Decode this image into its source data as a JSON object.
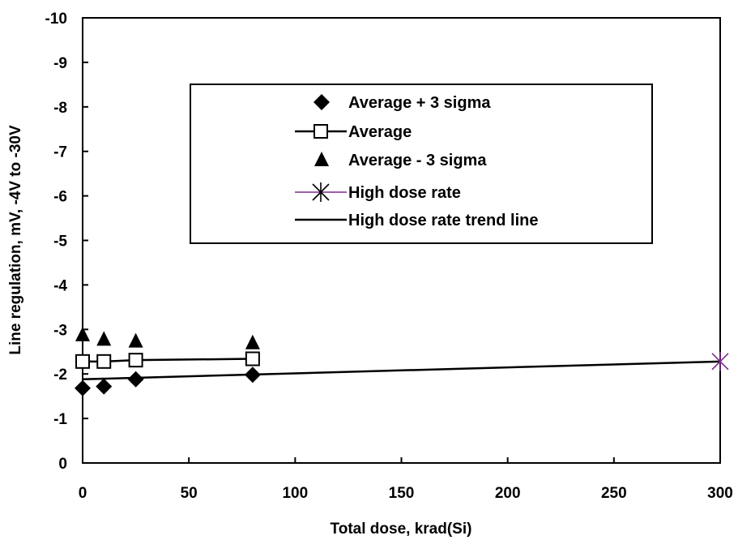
{
  "chart_data": {
    "type": "scatter",
    "xlabel": "Total dose, krad(Si)",
    "ylabel": "Line regulation, mV, -4V to -30V",
    "xlim": [
      0,
      300
    ],
    "ylim": [
      0,
      -10
    ],
    "x_ticks": [
      0,
      50,
      100,
      150,
      200,
      250,
      300
    ],
    "y_ticks": [
      0,
      -1,
      -2,
      -3,
      -4,
      -5,
      -6,
      -7,
      -8,
      -9,
      -10
    ],
    "x_tick_labels": [
      "0",
      "50",
      "100",
      "150",
      "200",
      "250",
      "300"
    ],
    "y_tick_labels": [
      "0",
      "-1",
      "-2",
      "-3",
      "-4",
      "-5",
      "-6",
      "-7",
      "-8",
      "-9",
      "-10"
    ],
    "grid": false,
    "legend_position": "top-right inside",
    "series": [
      {
        "name": "Average + 3 sigma",
        "marker": "diamond",
        "line": false,
        "color": "#000000",
        "x": [
          0,
          10,
          25,
          80
        ],
        "y": [
          -1.68,
          -1.72,
          -1.88,
          -1.98
        ]
      },
      {
        "name": "Average",
        "marker": "open-square",
        "line": true,
        "color": "#000000",
        "x": [
          0,
          10,
          25,
          80
        ],
        "y": [
          -2.28,
          -2.28,
          -2.31,
          -2.34
        ]
      },
      {
        "name": "Average - 3 sigma",
        "marker": "triangle",
        "line": false,
        "color": "#000000",
        "x": [
          0,
          10,
          25,
          80
        ],
        "y": [
          -2.88,
          -2.78,
          -2.74,
          -2.7
        ]
      },
      {
        "name": "High dose rate",
        "marker": "asterisk",
        "line": true,
        "color": "#7b2a8c",
        "x": [
          0,
          300
        ],
        "y": [
          -2.0,
          -2.28
        ]
      },
      {
        "name": "High dose rate trend line",
        "marker": "none",
        "line": true,
        "color": "#000000",
        "x": [
          0,
          300
        ],
        "y": [
          -1.88,
          -2.28
        ]
      }
    ]
  }
}
